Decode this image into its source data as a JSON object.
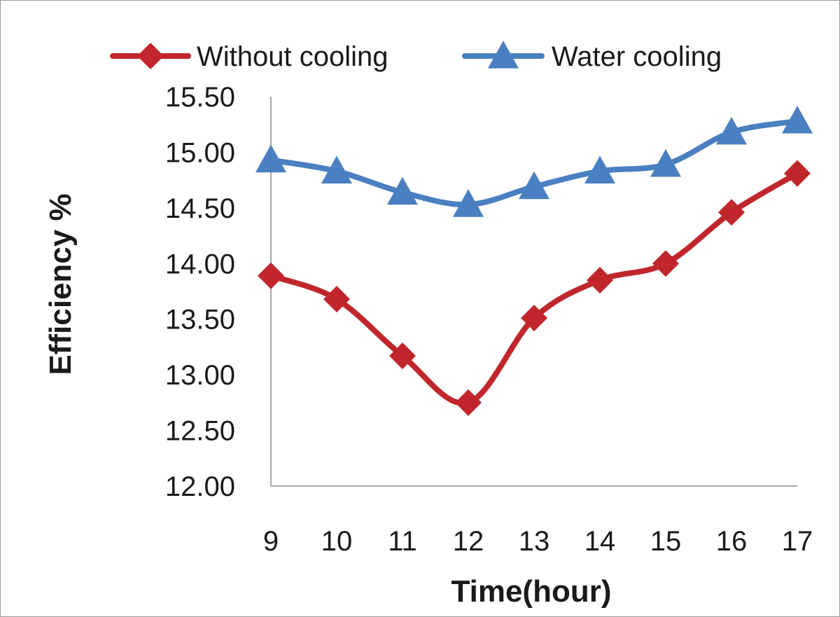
{
  "chart_data": {
    "type": "line",
    "title": "",
    "xlabel": "Time(hour)",
    "ylabel": "Efficiency %",
    "x": [
      9,
      10,
      11,
      12,
      13,
      14,
      15,
      16,
      17
    ],
    "x_tick_labels": [
      "9",
      "10",
      "11",
      "12",
      "13",
      "14",
      "15",
      "16",
      "17"
    ],
    "ylim": [
      12.0,
      15.5
    ],
    "y_ticks": [
      12.0,
      12.5,
      13.0,
      13.5,
      14.0,
      14.5,
      15.0,
      15.5
    ],
    "y_tick_labels": [
      "12.00",
      "12.50",
      "13.00",
      "13.50",
      "14.00",
      "14.50",
      "15.00",
      "15.50"
    ],
    "grid": false,
    "smooth": true,
    "legend_position": "top",
    "series": [
      {
        "name": "Without cooling",
        "color": "#c0262c",
        "marker": "diamond",
        "values": [
          13.89,
          13.68,
          13.17,
          12.75,
          13.51,
          13.85,
          14.0,
          14.46,
          14.81
        ]
      },
      {
        "name": "Water cooling",
        "color": "#4a7fc1",
        "marker": "triangle",
        "values": [
          14.93,
          14.83,
          14.64,
          14.53,
          14.69,
          14.83,
          14.89,
          15.18,
          15.28
        ]
      }
    ]
  }
}
